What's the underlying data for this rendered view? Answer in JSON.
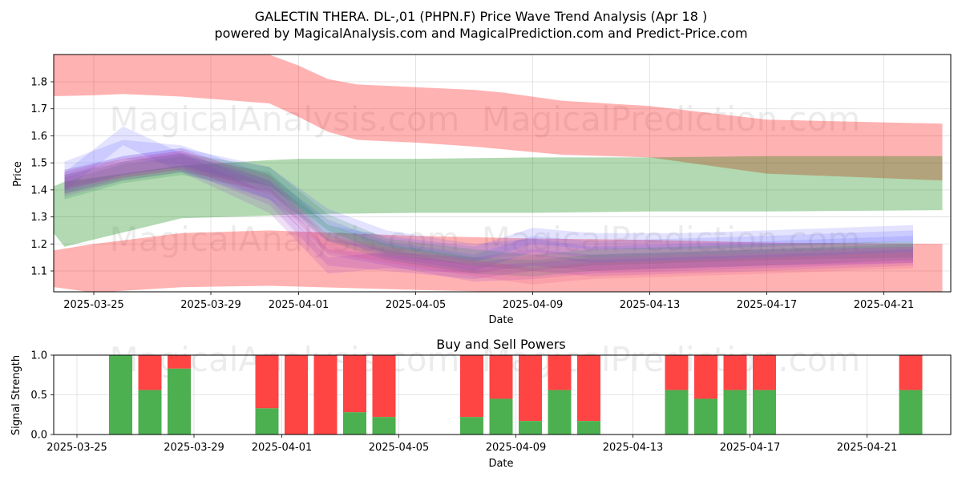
{
  "header": {
    "title": "GALECTIN THERA.  DL-,01 (PHPN.F) Price Wave Trend Analysis (Apr 18 )",
    "subtitle": "powered by MagicalAnalysis.com and MagicalPrediction.com and Predict-Price.com"
  },
  "watermarks": [
    "MagicalAnalysis.com",
    "MagicalPrediction.com"
  ],
  "chart_data": [
    {
      "type": "area",
      "title": "",
      "xlabel": "Date",
      "ylabel": "Price",
      "x_ticks": [
        "2025-03-25",
        "2025-03-29",
        "2025-04-01",
        "2025-04-05",
        "2025-04-09",
        "2025-04-13",
        "2025-04-17",
        "2025-04-21"
      ],
      "y_ticks": [
        "1.1",
        "1.2",
        "1.3",
        "1.4",
        "1.5",
        "1.6",
        "1.7",
        "1.8"
      ],
      "xlim": [
        "2025-03-23",
        "2025-04-23"
      ],
      "ylim": [
        1.02,
        1.9
      ],
      "grid": true,
      "colors": {
        "red": "#ff0000",
        "green": "#008000",
        "blue": "#0000ff",
        "purple": "#800080",
        "teal": "#2e8b57"
      },
      "bands": [
        {
          "color": "red",
          "dates": [
            "2025-03-23",
            "2025-03-25",
            "2025-03-26",
            "2025-03-28",
            "2025-03-31",
            "2025-04-01",
            "2025-04-02",
            "2025-04-03",
            "2025-04-05",
            "2025-04-07",
            "2025-04-08",
            "2025-04-10",
            "2025-04-13",
            "2025-04-17",
            "2025-04-23"
          ],
          "upper": [
            1.9,
            1.9,
            1.9,
            1.9,
            1.9,
            1.86,
            1.81,
            1.79,
            1.78,
            1.77,
            1.76,
            1.73,
            1.71,
            1.66,
            1.645
          ],
          "lower": [
            1.745,
            1.75,
            1.755,
            1.745,
            1.72,
            1.67,
            1.615,
            1.585,
            1.575,
            1.56,
            1.55,
            1.53,
            1.52,
            1.46,
            1.435
          ]
        },
        {
          "color": "green",
          "dates": [
            "2025-03-23",
            "2025-03-24",
            "2025-03-28",
            "2025-03-31",
            "2025-04-01",
            "2025-04-05",
            "2025-04-09",
            "2025-04-13",
            "2025-04-17",
            "2025-04-23"
          ],
          "upper": [
            1.385,
            1.43,
            1.49,
            1.51,
            1.515,
            1.515,
            1.52,
            1.52,
            1.525,
            1.525
          ],
          "lower": [
            1.325,
            1.19,
            1.295,
            1.305,
            1.31,
            1.315,
            1.315,
            1.32,
            1.32,
            1.325
          ]
        },
        {
          "color": "red",
          "dates": [
            "2025-03-23",
            "2025-03-25",
            "2025-03-28",
            "2025-03-31",
            "2025-04-05",
            "2025-04-09",
            "2025-04-13",
            "2025-04-17",
            "2025-04-23"
          ],
          "upper": [
            1.165,
            1.2,
            1.24,
            1.25,
            1.23,
            1.22,
            1.215,
            1.205,
            1.2
          ],
          "lower": [
            1.05,
            1.02,
            1.04,
            1.045,
            1.03,
            1.02,
            1.02,
            1.02,
            1.02
          ]
        }
      ],
      "wave_dates": [
        "2025-03-24",
        "2025-03-26",
        "2025-03-28",
        "2025-03-31",
        "2025-04-02",
        "2025-04-04",
        "2025-04-07",
        "2025-04-09",
        "2025-04-11",
        "2025-04-14",
        "2025-04-17",
        "2025-04-22"
      ],
      "waves": [
        {
          "color": "blue",
          "values": [
            1.44,
            1.49,
            1.52,
            1.45,
            1.3,
            1.22,
            1.17,
            1.19,
            1.16,
            1.17,
            1.18,
            1.2
          ]
        },
        {
          "color": "blue",
          "values": [
            1.47,
            1.55,
            1.53,
            1.42,
            1.26,
            1.18,
            1.13,
            1.2,
            1.18,
            1.19,
            1.2,
            1.22
          ]
        },
        {
          "color": "blue",
          "values": [
            1.43,
            1.6,
            1.5,
            1.4,
            1.24,
            1.2,
            1.16,
            1.23,
            1.21,
            1.21,
            1.22,
            1.24
          ]
        },
        {
          "color": "teal",
          "values": [
            1.42,
            1.47,
            1.5,
            1.45,
            1.28,
            1.19,
            1.15,
            1.13,
            1.15,
            1.16,
            1.17,
            1.18
          ]
        },
        {
          "color": "teal",
          "values": [
            1.4,
            1.46,
            1.49,
            1.43,
            1.24,
            1.17,
            1.12,
            1.11,
            1.13,
            1.14,
            1.15,
            1.17
          ]
        },
        {
          "color": "purple",
          "values": [
            1.42,
            1.48,
            1.51,
            1.38,
            1.15,
            1.13,
            1.1,
            1.13,
            1.11,
            1.12,
            1.13,
            1.15
          ]
        },
        {
          "color": "purple",
          "values": [
            1.41,
            1.47,
            1.5,
            1.35,
            1.12,
            1.14,
            1.12,
            1.15,
            1.13,
            1.14,
            1.15,
            1.16
          ]
        },
        {
          "color": "purple",
          "values": [
            1.43,
            1.49,
            1.52,
            1.4,
            1.19,
            1.15,
            1.09,
            1.1,
            1.12,
            1.13,
            1.14,
            1.16
          ]
        },
        {
          "color": "red",
          "values": [
            1.44,
            1.48,
            1.51,
            1.42,
            1.2,
            1.16,
            1.11,
            1.08,
            1.1,
            1.11,
            1.12,
            1.14
          ]
        }
      ]
    },
    {
      "type": "bar",
      "title": "Buy and Sell Powers",
      "xlabel": "Date",
      "ylabel": "Signal Strength",
      "x_ticks": [
        "2025-03-25",
        "2025-03-29",
        "2025-04-01",
        "2025-04-05",
        "2025-04-09",
        "2025-04-13",
        "2025-04-17",
        "2025-04-21"
      ],
      "y_ticks": [
        "0.0",
        "0.5",
        "1.0"
      ],
      "ylim": [
        0,
        1
      ],
      "xlim": [
        "2025-03-24",
        "2025-04-23"
      ],
      "grid": true,
      "colors": {
        "buy": "#4caf50",
        "sell": "#ff4444"
      },
      "series": [
        {
          "name": "buy"
        },
        {
          "name": "sell"
        }
      ],
      "categories": [
        "2025-03-26",
        "2025-03-27",
        "2025-03-28",
        "2025-03-31",
        "2025-04-01",
        "2025-04-02",
        "2025-04-03",
        "2025-04-04",
        "2025-04-07",
        "2025-04-08",
        "2025-04-09",
        "2025-04-10",
        "2025-04-11",
        "2025-04-14",
        "2025-04-15",
        "2025-04-16",
        "2025-04-17",
        "2025-04-22"
      ],
      "buy": [
        1.0,
        0.56,
        0.83,
        0.33,
        0.0,
        0.0,
        0.28,
        0.22,
        0.22,
        0.45,
        0.17,
        0.56,
        0.17,
        0.56,
        0.45,
        0.56,
        0.56,
        0.56
      ]
    }
  ]
}
